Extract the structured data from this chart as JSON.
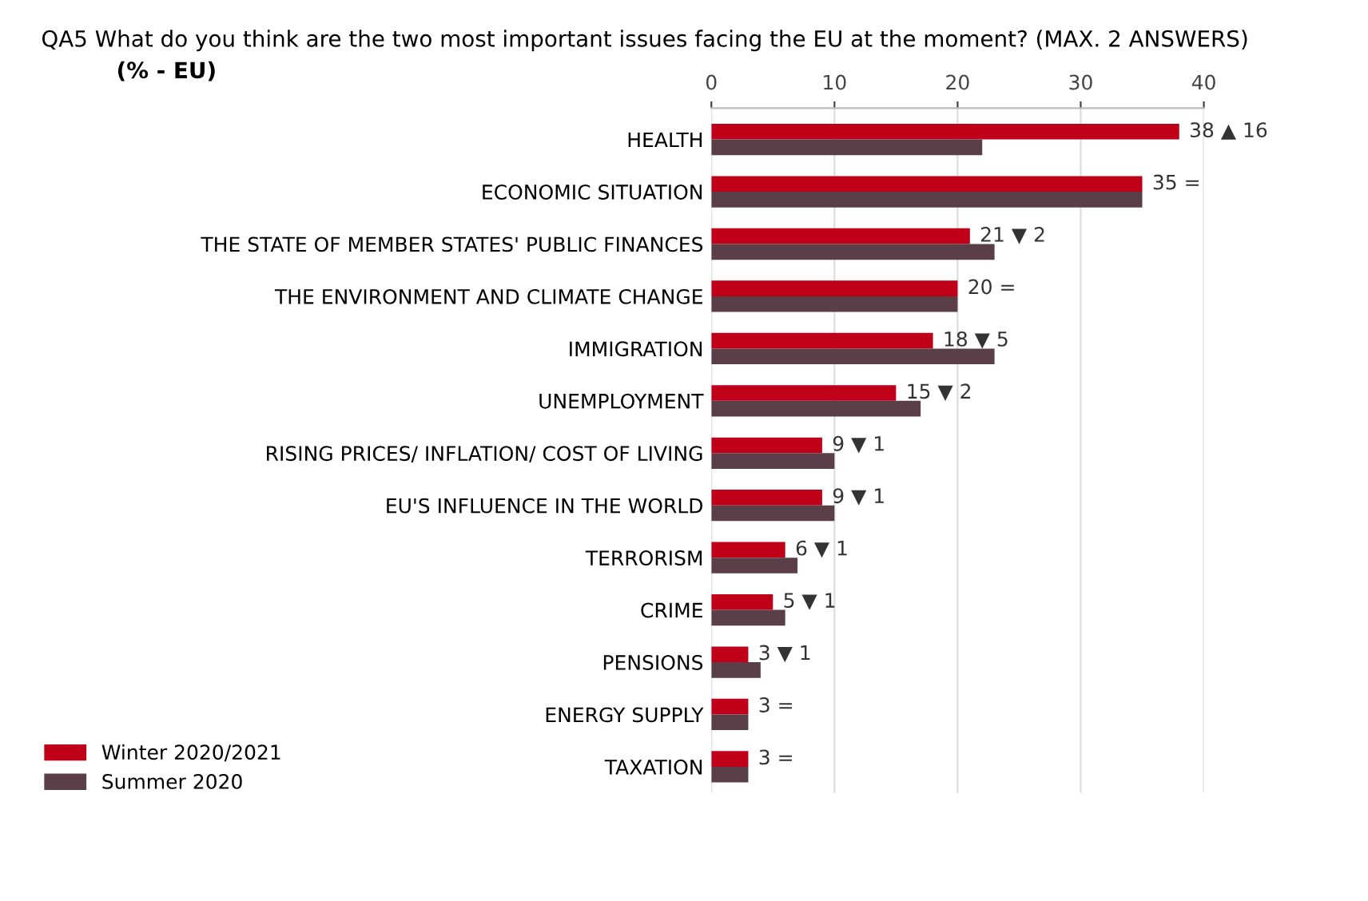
{
  "chart_data": {
    "type": "bar",
    "orientation": "horizontal",
    "title": "QA5 What do you think are the two most important issues facing the EU at the moment? (MAX. 2 ANSWERS)",
    "subtitle": "(% - EU)",
    "categories": [
      "HEALTH",
      "ECONOMIC SITUATION",
      "THE STATE OF MEMBER STATES' PUBLIC FINANCES",
      "THE ENVIRONMENT AND CLIMATE CHANGE",
      "IMMIGRATION",
      "UNEMPLOYMENT",
      "RISING PRICES/ INFLATION/ COST OF LIVING",
      "EU'S INFLUENCE IN THE WORLD",
      "TERRORISM",
      "CRIME",
      "PENSIONS",
      "ENERGY SUPPLY",
      "TAXATION"
    ],
    "series": [
      {
        "name": "Winter 2020/2021",
        "color": "#c00018",
        "values": [
          38,
          35,
          21,
          20,
          18,
          15,
          9,
          9,
          6,
          5,
          3,
          3,
          3
        ],
        "value_labels": [
          "38 ▲ 16",
          "35 =",
          "21 ▼ 2",
          "20 =",
          "18 ▼ 5",
          "15 ▼ 2",
          "9 ▼ 1",
          "9 ▼ 1",
          "6 ▼ 1",
          "5 ▼ 1",
          "3 ▼ 1",
          "3 =",
          "3 ="
        ]
      },
      {
        "name": "Summer 2020",
        "color": "#5a3f48",
        "values": [
          22,
          35,
          23,
          20,
          23,
          17,
          10,
          10,
          7,
          6,
          4,
          3,
          3
        ]
      }
    ],
    "xlim": [
      0,
      40
    ],
    "xticks": [
      0,
      10,
      20,
      30,
      40
    ],
    "grid": "x",
    "legend": "bottom left"
  }
}
